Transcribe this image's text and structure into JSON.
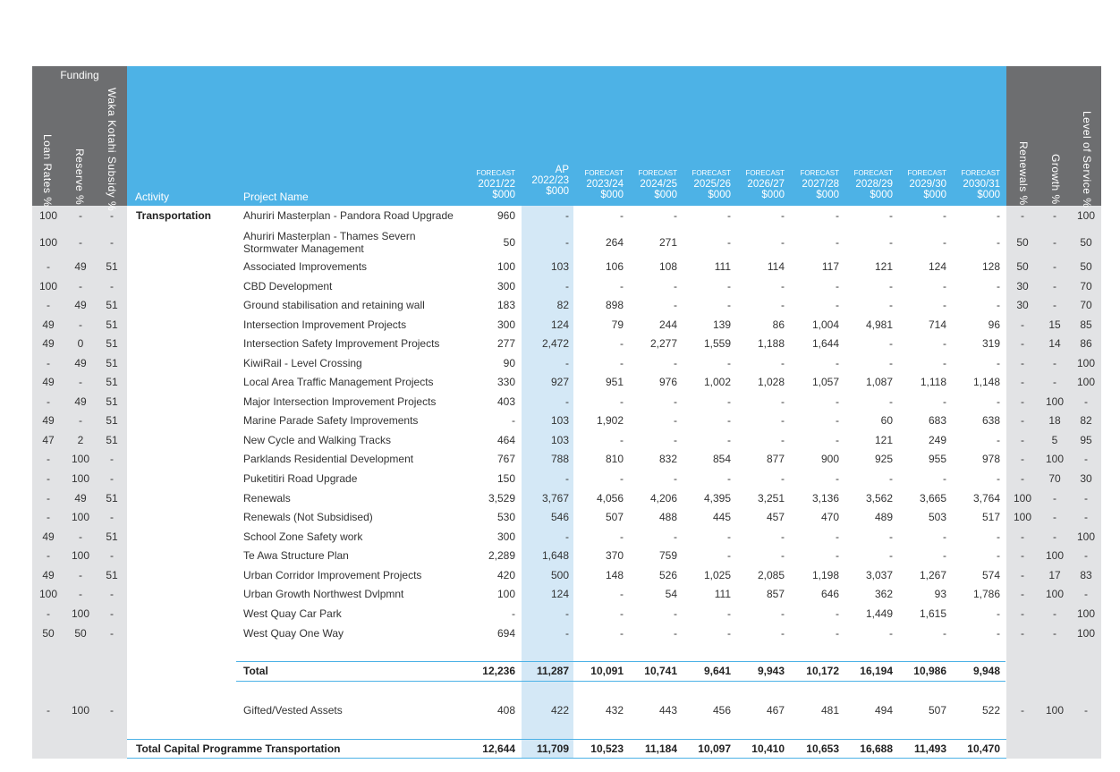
{
  "header": {
    "funding_label": "Funding",
    "left_cols": [
      "Loan Rates %",
      "Reserve %",
      "Waka Kotahi Subsidy %"
    ],
    "activity_label": "Activity",
    "project_label": "Project Name",
    "years": [
      {
        "top": "FORECAST",
        "year": "2021/22",
        "unit": "$000"
      },
      {
        "top": "AP",
        "year": "2022/23",
        "unit": "$000"
      },
      {
        "top": "FORECAST",
        "year": "2023/24",
        "unit": "$000"
      },
      {
        "top": "FORECAST",
        "year": "2024/25",
        "unit": "$000"
      },
      {
        "top": "FORECAST",
        "year": "2025/26",
        "unit": "$000"
      },
      {
        "top": "FORECAST",
        "year": "2026/27",
        "unit": "$000"
      },
      {
        "top": "FORECAST",
        "year": "2027/28",
        "unit": "$000"
      },
      {
        "top": "FORECAST",
        "year": "2028/29",
        "unit": "$000"
      },
      {
        "top": "FORECAST",
        "year": "2029/30",
        "unit": "$000"
      },
      {
        "top": "FORECAST",
        "year": "2030/31",
        "unit": "$000"
      }
    ],
    "right_cols": [
      "Renewals %",
      "Growth %",
      "Level of Service %"
    ]
  },
  "activity": "Transportation",
  "rows": [
    {
      "left": [
        "100",
        "-",
        "-"
      ],
      "name": "Ahuriri Masterplan - Pandora Road Upgrade",
      "vals": [
        "960",
        "-",
        "-",
        "-",
        "-",
        "-",
        "-",
        "-",
        "-",
        "-"
      ],
      "right": [
        "-",
        "-",
        "100"
      ]
    },
    {
      "left": [
        "100",
        "-",
        "-"
      ],
      "name": "Ahuriri Masterplan - Thames Severn",
      "name2": "Stormwater Management",
      "vals": [
        "50",
        "-",
        "264",
        "271",
        "-",
        "-",
        "-",
        "-",
        "-",
        "-"
      ],
      "right": [
        "50",
        "-",
        "50"
      ]
    },
    {
      "left": [
        "-",
        "49",
        "51"
      ],
      "name": "Associated Improvements",
      "vals": [
        "100",
        "103",
        "106",
        "108",
        "111",
        "114",
        "117",
        "121",
        "124",
        "128"
      ],
      "right": [
        "50",
        "-",
        "50"
      ]
    },
    {
      "left": [
        "100",
        "-",
        "-"
      ],
      "name": "CBD Development",
      "vals": [
        "300",
        "-",
        "-",
        "-",
        "-",
        "-",
        "-",
        "-",
        "-",
        "-"
      ],
      "right": [
        "30",
        "-",
        "70"
      ]
    },
    {
      "left": [
        "-",
        "49",
        "51"
      ],
      "name": "Ground stabilisation and retaining wall",
      "vals": [
        "183",
        "82",
        "898",
        "-",
        "-",
        "-",
        "-",
        "-",
        "-",
        "-"
      ],
      "right": [
        "30",
        "-",
        "70"
      ]
    },
    {
      "left": [
        "49",
        "-",
        "51"
      ],
      "name": "Intersection Improvement Projects",
      "vals": [
        "300",
        "124",
        "79",
        "244",
        "139",
        "86",
        "1,004",
        "4,981",
        "714",
        "96"
      ],
      "right": [
        "-",
        "15",
        "85"
      ]
    },
    {
      "left": [
        "49",
        "0",
        "51"
      ],
      "name": "Intersection Safety Improvement Projects",
      "vals": [
        "277",
        "2,472",
        "-",
        "2,277",
        "1,559",
        "1,188",
        "1,644",
        "-",
        "-",
        "319"
      ],
      "right": [
        "-",
        "14",
        "86"
      ]
    },
    {
      "left": [
        "-",
        "49",
        "51"
      ],
      "name": "KiwiRail - Level Crossing",
      "vals": [
        "90",
        "-",
        "-",
        "-",
        "-",
        "-",
        "-",
        "-",
        "-",
        "-"
      ],
      "right": [
        "-",
        "-",
        "100"
      ]
    },
    {
      "left": [
        "49",
        "-",
        "51"
      ],
      "name": "Local Area Traffic Management Projects",
      "vals": [
        "330",
        "927",
        "951",
        "976",
        "1,002",
        "1,028",
        "1,057",
        "1,087",
        "1,118",
        "1,148"
      ],
      "right": [
        "-",
        "-",
        "100"
      ]
    },
    {
      "left": [
        "-",
        "49",
        "51"
      ],
      "name": "Major Intersection Improvement Projects",
      "vals": [
        "403",
        "-",
        "-",
        "-",
        "-",
        "-",
        "-",
        "-",
        "-",
        "-"
      ],
      "right": [
        "-",
        "100",
        "-"
      ]
    },
    {
      "left": [
        "49",
        "-",
        "51"
      ],
      "name": "Marine Parade Safety Improvements",
      "vals": [
        "-",
        "103",
        "1,902",
        "-",
        "-",
        "-",
        "-",
        "60",
        "683",
        "638"
      ],
      "right": [
        "-",
        "18",
        "82"
      ]
    },
    {
      "left": [
        "47",
        "2",
        "51"
      ],
      "name": "New Cycle and Walking Tracks",
      "vals": [
        "464",
        "103",
        "-",
        "-",
        "-",
        "-",
        "-",
        "121",
        "249",
        "-"
      ],
      "right": [
        "-",
        "5",
        "95"
      ]
    },
    {
      "left": [
        "-",
        "100",
        "-"
      ],
      "name": "Parklands Residential Development",
      "vals": [
        "767",
        "788",
        "810",
        "832",
        "854",
        "877",
        "900",
        "925",
        "955",
        "978"
      ],
      "right": [
        "-",
        "100",
        "-"
      ]
    },
    {
      "left": [
        "-",
        "100",
        "-"
      ],
      "name": "Puketitiri Road Upgrade",
      "vals": [
        "150",
        "-",
        "-",
        "-",
        "-",
        "-",
        "-",
        "-",
        "-",
        "-"
      ],
      "right": [
        "-",
        "70",
        "30"
      ]
    },
    {
      "left": [
        "-",
        "49",
        "51"
      ],
      "name": "Renewals",
      "vals": [
        "3,529",
        "3,767",
        "4,056",
        "4,206",
        "4,395",
        "3,251",
        "3,136",
        "3,562",
        "3,665",
        "3,764"
      ],
      "right": [
        "100",
        "-",
        "-"
      ]
    },
    {
      "left": [
        "-",
        "100",
        "-"
      ],
      "name": "Renewals (Not Subsidised)",
      "vals": [
        "530",
        "546",
        "507",
        "488",
        "445",
        "457",
        "470",
        "489",
        "503",
        "517"
      ],
      "right": [
        "100",
        "-",
        "-"
      ]
    },
    {
      "left": [
        "49",
        "-",
        "51"
      ],
      "name": "School Zone Safety work",
      "vals": [
        "300",
        "-",
        "-",
        "-",
        "-",
        "-",
        "-",
        "-",
        "-",
        "-"
      ],
      "right": [
        "-",
        "-",
        "100"
      ]
    },
    {
      "left": [
        "-",
        "100",
        "-"
      ],
      "name": "Te Awa Structure Plan",
      "vals": [
        "2,289",
        "1,648",
        "370",
        "759",
        "-",
        "-",
        "-",
        "-",
        "-",
        "-"
      ],
      "right": [
        "-",
        "100",
        "-"
      ]
    },
    {
      "left": [
        "49",
        "-",
        "51"
      ],
      "name": "Urban Corridor Improvement Projects",
      "vals": [
        "420",
        "500",
        "148",
        "526",
        "1,025",
        "2,085",
        "1,198",
        "3,037",
        "1,267",
        "574"
      ],
      "right": [
        "-",
        "17",
        "83"
      ]
    },
    {
      "left": [
        "100",
        "-",
        "-"
      ],
      "name": "Urban Growth Northwest Dvlpmnt",
      "vals": [
        "100",
        "124",
        "-",
        "54",
        "111",
        "857",
        "646",
        "362",
        "93",
        "1,786"
      ],
      "right": [
        "-",
        "100",
        "-"
      ]
    },
    {
      "left": [
        "-",
        "100",
        "-"
      ],
      "name": "West Quay Car Park",
      "vals": [
        "-",
        "-",
        "-",
        "-",
        "-",
        "-",
        "-",
        "1,449",
        "1,615",
        "-"
      ],
      "right": [
        "-",
        "-",
        "100"
      ]
    },
    {
      "left": [
        "50",
        "50",
        "-"
      ],
      "name": "West Quay One Way",
      "vals": [
        "694",
        "-",
        "-",
        "-",
        "-",
        "-",
        "-",
        "-",
        "-",
        "-"
      ],
      "right": [
        "-",
        "-",
        "100"
      ]
    }
  ],
  "total": {
    "label": "Total",
    "vals": [
      "12,236",
      "11,287",
      "10,091",
      "10,741",
      "9,641",
      "9,943",
      "10,172",
      "16,194",
      "10,986",
      "9,948"
    ]
  },
  "gifted": {
    "left": [
      "-",
      "100",
      "-"
    ],
    "name": "Gifted/Vested Assets",
    "vals": [
      "408",
      "422",
      "432",
      "443",
      "456",
      "467",
      "481",
      "494",
      "507",
      "522"
    ],
    "right": [
      "-",
      "100",
      "-"
    ]
  },
  "grand_total": {
    "label": "Total Capital Programme Transportation",
    "vals": [
      "12,644",
      "11,709",
      "10,523",
      "11,184",
      "10,097",
      "10,410",
      "10,653",
      "16,688",
      "11,493",
      "10,470"
    ]
  },
  "colors": {
    "blue": "#4db2e6",
    "dark_grey": "#6d6e70",
    "light_grey": "#e2e3e5",
    "highlight": "#d4e8f6"
  }
}
